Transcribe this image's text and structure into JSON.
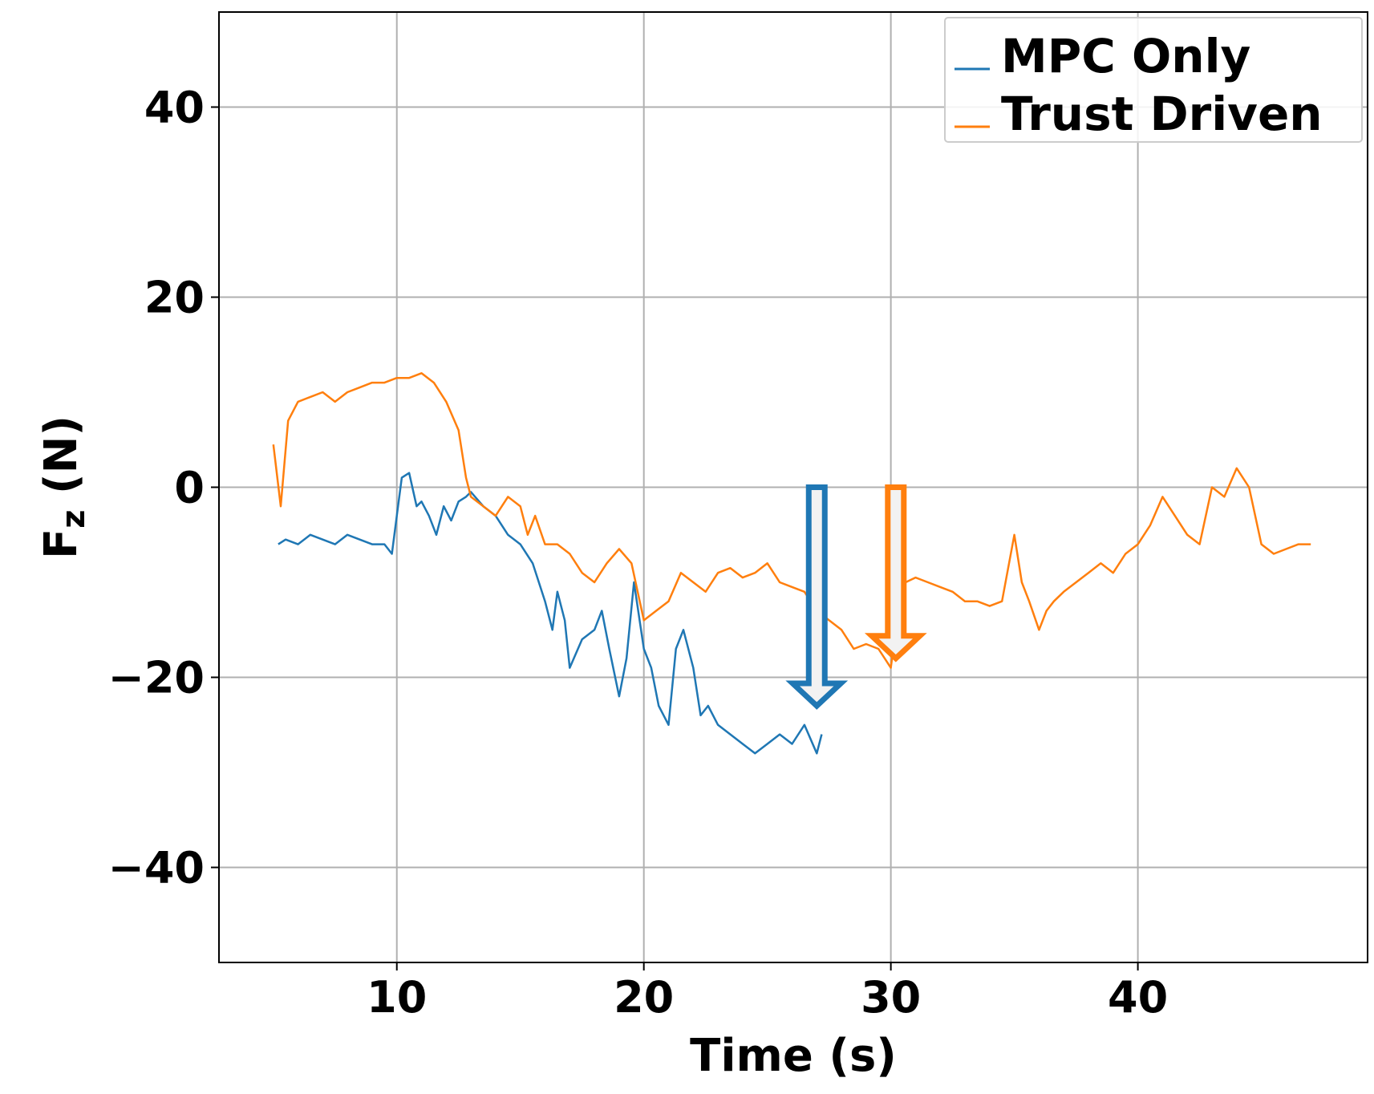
{
  "chart_data": {
    "type": "line",
    "xlabel": "Time (s)",
    "ylabel_main": "F",
    "ylabel_sub": "z",
    "ylabel_rest": " (N)",
    "xlim": [
      2.8,
      49.3
    ],
    "ylim": [
      -50,
      50
    ],
    "xticks": [
      10,
      20,
      30,
      40
    ],
    "xtick_labels": [
      "10",
      "20",
      "30",
      "40"
    ],
    "yticks": [
      -40,
      -20,
      0,
      20,
      40
    ],
    "ytick_labels": [
      "−40",
      "−20",
      "0",
      "20",
      "40"
    ],
    "grid": true,
    "legend_position": "top-right",
    "series": [
      {
        "name": "MPC Only",
        "color": "#1f77b4",
        "x": [
          5.2,
          5.5,
          6.0,
          6.5,
          7.0,
          7.5,
          8.0,
          8.5,
          9.0,
          9.5,
          9.8,
          10.0,
          10.2,
          10.5,
          10.8,
          11.0,
          11.3,
          11.6,
          11.9,
          12.2,
          12.5,
          12.8,
          13.0,
          13.5,
          14.0,
          14.5,
          15.0,
          15.5,
          16.0,
          16.3,
          16.5,
          16.8,
          17.0,
          17.5,
          18.0,
          18.3,
          18.6,
          19.0,
          19.3,
          19.6,
          20.0,
          20.3,
          20.6,
          21.0,
          21.3,
          21.6,
          22.0,
          22.3,
          22.6,
          23.0,
          23.5,
          24.0,
          24.5,
          25.0,
          25.5,
          26.0,
          26.5,
          27.0,
          27.2
        ],
        "y": [
          -6,
          -5.5,
          -6,
          -5,
          -5.5,
          -6,
          -5,
          -5.5,
          -6,
          -6,
          -7,
          -3,
          1,
          1.5,
          -2,
          -1.5,
          -3,
          -5,
          -2,
          -3.5,
          -1.5,
          -1,
          -0.5,
          -2,
          -3,
          -5,
          -6,
          -8,
          -12,
          -15,
          -11,
          -14,
          -19,
          -16,
          -15,
          -13,
          -17,
          -22,
          -18,
          -10,
          -17,
          -19,
          -23,
          -25,
          -17,
          -15,
          -19,
          -24,
          -23,
          -25,
          -26,
          -27,
          -28,
          -27,
          -26,
          -27,
          -25,
          -28,
          -26
        ],
        "end_marker": {
          "x": 27.0,
          "y_start": 0,
          "y_end": -23
        }
      },
      {
        "name": "Trust Driven",
        "color": "#ff7f0e",
        "x": [
          5.0,
          5.3,
          5.6,
          6.0,
          6.5,
          7.0,
          7.5,
          8.0,
          8.5,
          9.0,
          9.5,
          10.0,
          10.5,
          11.0,
          11.5,
          12.0,
          12.5,
          12.8,
          13.0,
          13.5,
          14.0,
          14.5,
          15.0,
          15.3,
          15.6,
          16.0,
          16.5,
          17.0,
          17.5,
          18.0,
          18.5,
          19.0,
          19.5,
          20.0,
          20.5,
          21.0,
          21.5,
          22.0,
          22.5,
          23.0,
          23.5,
          24.0,
          24.5,
          25.0,
          25.5,
          26.0,
          26.5,
          27.0,
          27.5,
          28.0,
          28.5,
          29.0,
          29.5,
          30.0,
          30.3,
          30.6,
          31.0,
          31.5,
          32.0,
          32.5,
          33.0,
          33.5,
          34.0,
          34.5,
          35.0,
          35.3,
          35.6,
          36.0,
          36.3,
          36.6,
          37.0,
          37.5,
          38.0,
          38.5,
          39.0,
          39.5,
          40.0,
          40.5,
          41.0,
          41.5,
          42.0,
          42.5,
          43.0,
          43.5,
          44.0,
          44.5,
          45.0,
          45.5,
          46.0,
          46.5,
          47.0
        ],
        "y": [
          4.5,
          -2,
          7,
          9,
          9.5,
          10,
          9,
          10,
          10.5,
          11,
          11,
          11.5,
          11.5,
          12,
          11,
          9,
          6,
          1,
          -1,
          -2,
          -3,
          -1,
          -2,
          -5,
          -3,
          -6,
          -6,
          -7,
          -9,
          -10,
          -8,
          -6.5,
          -8,
          -14,
          -13,
          -12,
          -9,
          -10,
          -11,
          -9,
          -8.5,
          -9.5,
          -9,
          -8,
          -10,
          -10.5,
          -11,
          -13,
          -14,
          -15,
          -17,
          -16.5,
          -17,
          -19,
          -13,
          -10,
          -9.5,
          -10,
          -10.5,
          -11,
          -12,
          -12,
          -12.5,
          -12,
          -5,
          -10,
          -12,
          -15,
          -13,
          -12,
          -11,
          -10,
          -9,
          -8,
          -9,
          -7,
          -6,
          -4,
          -1,
          -3,
          -5,
          -6,
          0,
          -1,
          2,
          0,
          -6,
          -7,
          -6.5,
          -6,
          -6
        ],
        "end_marker": {
          "x": 30.2,
          "y_start": 0,
          "y_end": -18
        }
      }
    ]
  }
}
